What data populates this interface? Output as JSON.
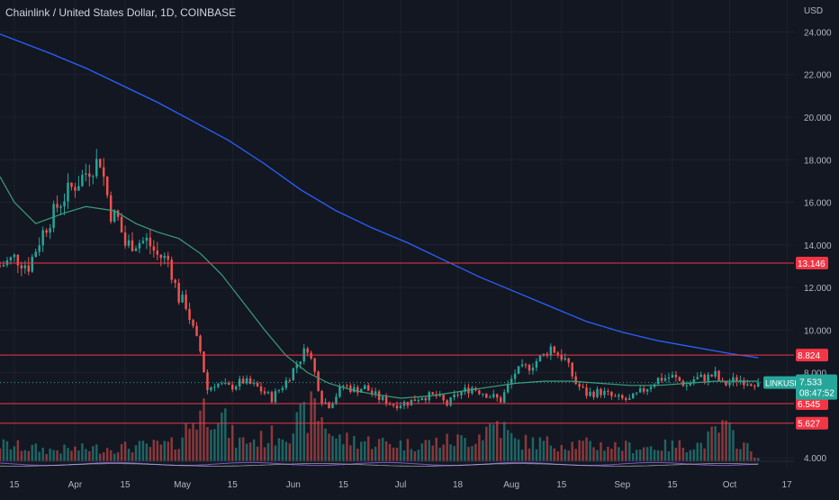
{
  "header": {
    "title": "Chainlink / United States Dollar, 1D, COINBASE",
    "currency": "USD"
  },
  "colors": {
    "background": "#131722",
    "grid": "#1e222d",
    "up": "#26a69a",
    "down": "#ef5350",
    "ma_fast": "#3a9e7a",
    "ma_slow": "#2962ff",
    "hline": "#f23645",
    "axis_text": "#b2b5be"
  },
  "chart_data": {
    "type": "candlestick",
    "title": "Chainlink / United States Dollar, 1D, COINBASE",
    "symbol": "LINKUSD",
    "interval": "1D",
    "exchange": "COINBASE",
    "y_axis": {
      "unit": "USD",
      "ticks": [
        "24.000",
        "22.000",
        "20.000",
        "18.000",
        "16.000",
        "14.000",
        "12.000",
        "10.000",
        "8.000",
        "4.000"
      ],
      "ylim": [
        3.5,
        25.5
      ]
    },
    "x_axis": {
      "ticks": [
        "15",
        "Apr",
        "15",
        "May",
        "15",
        "Jun",
        "15",
        "Jul",
        "18",
        "Aug",
        "15",
        "Sep",
        "15",
        "Oct",
        "17"
      ],
      "tick_day_index": [
        0,
        17,
        31,
        47,
        61,
        78,
        92,
        108,
        124,
        139,
        153,
        170,
        184,
        200,
        216
      ]
    },
    "grid": true,
    "horizontal_lines": [
      {
        "value": 13.146,
        "label": "13.146"
      },
      {
        "value": 8.824,
        "label": "8.824"
      },
      {
        "value": 6.545,
        "label": "6.545"
      },
      {
        "value": 5.627,
        "label": "5.627"
      }
    ],
    "last_price": {
      "symbol": "LINKUSD",
      "value": 7.533,
      "label": "7.533",
      "countdown": "08:47:52"
    },
    "close_path": [
      [
        -4,
        13.0
      ],
      [
        0,
        13.4
      ],
      [
        4,
        13.0
      ],
      [
        8,
        14.6
      ],
      [
        12,
        15.8
      ],
      [
        15,
        16.5
      ],
      [
        18,
        17.0
      ],
      [
        21,
        17.6
      ],
      [
        24,
        18.0
      ],
      [
        27,
        15.5
      ],
      [
        29,
        15.2
      ],
      [
        31,
        14.0
      ],
      [
        34,
        14.1
      ],
      [
        37,
        14.2
      ],
      [
        40,
        13.5
      ],
      [
        43,
        13.3
      ],
      [
        46,
        11.5
      ],
      [
        48,
        11.2
      ],
      [
        50,
        10.0
      ],
      [
        52,
        9.0
      ],
      [
        54,
        7.2
      ],
      [
        56,
        7.5
      ],
      [
        60,
        7.3
      ],
      [
        64,
        7.6
      ],
      [
        68,
        7.3
      ],
      [
        72,
        6.8
      ],
      [
        76,
        7.6
      ],
      [
        80,
        8.7
      ],
      [
        82,
        9.2
      ],
      [
        84,
        8.0
      ],
      [
        86,
        6.7
      ],
      [
        88,
        6.5
      ],
      [
        92,
        7.4
      ],
      [
        95,
        7.2
      ],
      [
        98,
        7.3
      ],
      [
        102,
        6.8
      ],
      [
        106,
        6.5
      ],
      [
        110,
        6.6
      ],
      [
        114,
        6.9
      ],
      [
        118,
        6.9
      ],
      [
        121,
        6.5
      ],
      [
        124,
        7.0
      ],
      [
        128,
        7.3
      ],
      [
        132,
        7.0
      ],
      [
        136,
        6.7
      ],
      [
        140,
        8.0
      ],
      [
        144,
        8.3
      ],
      [
        148,
        8.8
      ],
      [
        150,
        9.2
      ],
      [
        152,
        8.9
      ],
      [
        154,
        8.6
      ],
      [
        157,
        7.5
      ],
      [
        160,
        7.0
      ],
      [
        164,
        7.1
      ],
      [
        168,
        6.8
      ],
      [
        172,
        6.7
      ],
      [
        176,
        7.2
      ],
      [
        180,
        7.7
      ],
      [
        184,
        7.8
      ],
      [
        188,
        7.4
      ],
      [
        190,
        7.7
      ],
      [
        194,
        7.8
      ],
      [
        196,
        7.9
      ],
      [
        198,
        7.4
      ],
      [
        202,
        7.7
      ],
      [
        205,
        7.6
      ],
      [
        208,
        7.533
      ]
    ],
    "volume_path": [
      [
        -4,
        0.3
      ],
      [
        10,
        0.2
      ],
      [
        30,
        0.25
      ],
      [
        45,
        0.3
      ],
      [
        52,
        0.9
      ],
      [
        56,
        1.0
      ],
      [
        62,
        0.35
      ],
      [
        70,
        0.4
      ],
      [
        78,
        0.6
      ],
      [
        84,
        0.95
      ],
      [
        90,
        0.4
      ],
      [
        110,
        0.3
      ],
      [
        120,
        0.35
      ],
      [
        128,
        0.4
      ],
      [
        135,
        0.7
      ],
      [
        140,
        0.35
      ],
      [
        160,
        0.3
      ],
      [
        175,
        0.25
      ],
      [
        192,
        0.3
      ],
      [
        198,
        0.6
      ],
      [
        204,
        0.3
      ],
      [
        208,
        0.05
      ]
    ],
    "ma_fast_path": [
      [
        -4,
        17.2
      ],
      [
        0,
        16.0
      ],
      [
        6,
        15.0
      ],
      [
        14,
        15.5
      ],
      [
        20,
        15.8
      ],
      [
        28,
        15.6
      ],
      [
        34,
        15.0
      ],
      [
        40,
        14.6
      ],
      [
        46,
        14.3
      ],
      [
        52,
        13.6
      ],
      [
        58,
        12.6
      ],
      [
        64,
        11.3
      ],
      [
        70,
        10.0
      ],
      [
        76,
        8.8
      ],
      [
        82,
        8.0
      ],
      [
        88,
        7.5
      ],
      [
        94,
        7.2
      ],
      [
        100,
        7.0
      ],
      [
        108,
        6.8
      ],
      [
        116,
        6.9
      ],
      [
        124,
        7.1
      ],
      [
        132,
        7.3
      ],
      [
        140,
        7.5
      ],
      [
        148,
        7.6
      ],
      [
        156,
        7.6
      ],
      [
        164,
        7.5
      ],
      [
        172,
        7.4
      ],
      [
        180,
        7.4
      ],
      [
        188,
        7.5
      ],
      [
        196,
        7.6
      ],
      [
        204,
        7.6
      ],
      [
        208,
        7.6
      ]
    ],
    "ma_slow_path": [
      [
        -4,
        23.9
      ],
      [
        10,
        23.0
      ],
      [
        20,
        22.3
      ],
      [
        30,
        21.5
      ],
      [
        40,
        20.7
      ],
      [
        50,
        19.8
      ],
      [
        60,
        18.9
      ],
      [
        70,
        17.8
      ],
      [
        80,
        16.6
      ],
      [
        90,
        15.6
      ],
      [
        100,
        14.8
      ],
      [
        110,
        14.1
      ],
      [
        120,
        13.3
      ],
      [
        130,
        12.5
      ],
      [
        140,
        11.8
      ],
      [
        150,
        11.1
      ],
      [
        160,
        10.4
      ],
      [
        170,
        9.9
      ],
      [
        180,
        9.5
      ],
      [
        190,
        9.2
      ],
      [
        200,
        8.9
      ],
      [
        208,
        8.7
      ]
    ]
  }
}
